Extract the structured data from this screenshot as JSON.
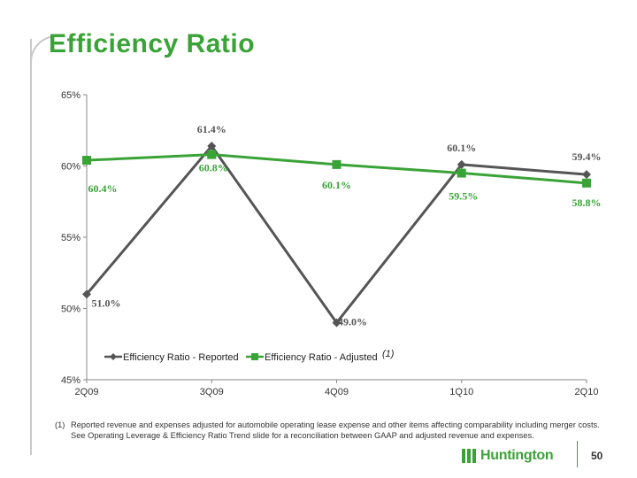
{
  "slide": {
    "title": "Efficiency Ratio",
    "page_number": "50",
    "footnote_marker": "(1)",
    "footnote_text": "Reported revenue and expenses adjusted for automobile operating lease expense and other items affecting comparability including merger costs.  See Operating Leverage & Efficiency Ratio Trend slide for a reconciliation between GAAP and adjusted revenue and expenses.",
    "logo_text": "Huntington",
    "colors": {
      "brand_green": "#3aa337",
      "reported": "#555555",
      "adjusted": "#3aa337"
    }
  },
  "chart_data": {
    "type": "line",
    "categories": [
      "2Q09",
      "3Q09",
      "4Q09",
      "1Q10",
      "2Q10"
    ],
    "series": [
      {
        "name": "Efficiency Ratio - Reported",
        "values": [
          51.0,
          61.4,
          49.0,
          60.1,
          59.4
        ],
        "labels": [
          "51.0%",
          "61.4%",
          "49.0%",
          "60.1%",
          "59.4%"
        ],
        "color": "#555555",
        "marker": "diamond"
      },
      {
        "name": "Efficiency Ratio - Adjusted",
        "values": [
          60.4,
          60.8,
          60.1,
          59.5,
          58.8
        ],
        "labels": [
          "60.4%",
          "60.8%",
          "60.1%",
          "59.5%",
          "58.8%"
        ],
        "color": "#3aa337",
        "marker": "square"
      }
    ],
    "legend_suffix": "(1)",
    "ylim": [
      45,
      65
    ],
    "yticks": [
      45,
      50,
      55,
      60,
      65
    ],
    "ytick_labels": [
      "45%",
      "50%",
      "55%",
      "60%",
      "65%"
    ],
    "grid": false,
    "legend_position": "inside-bottom"
  }
}
